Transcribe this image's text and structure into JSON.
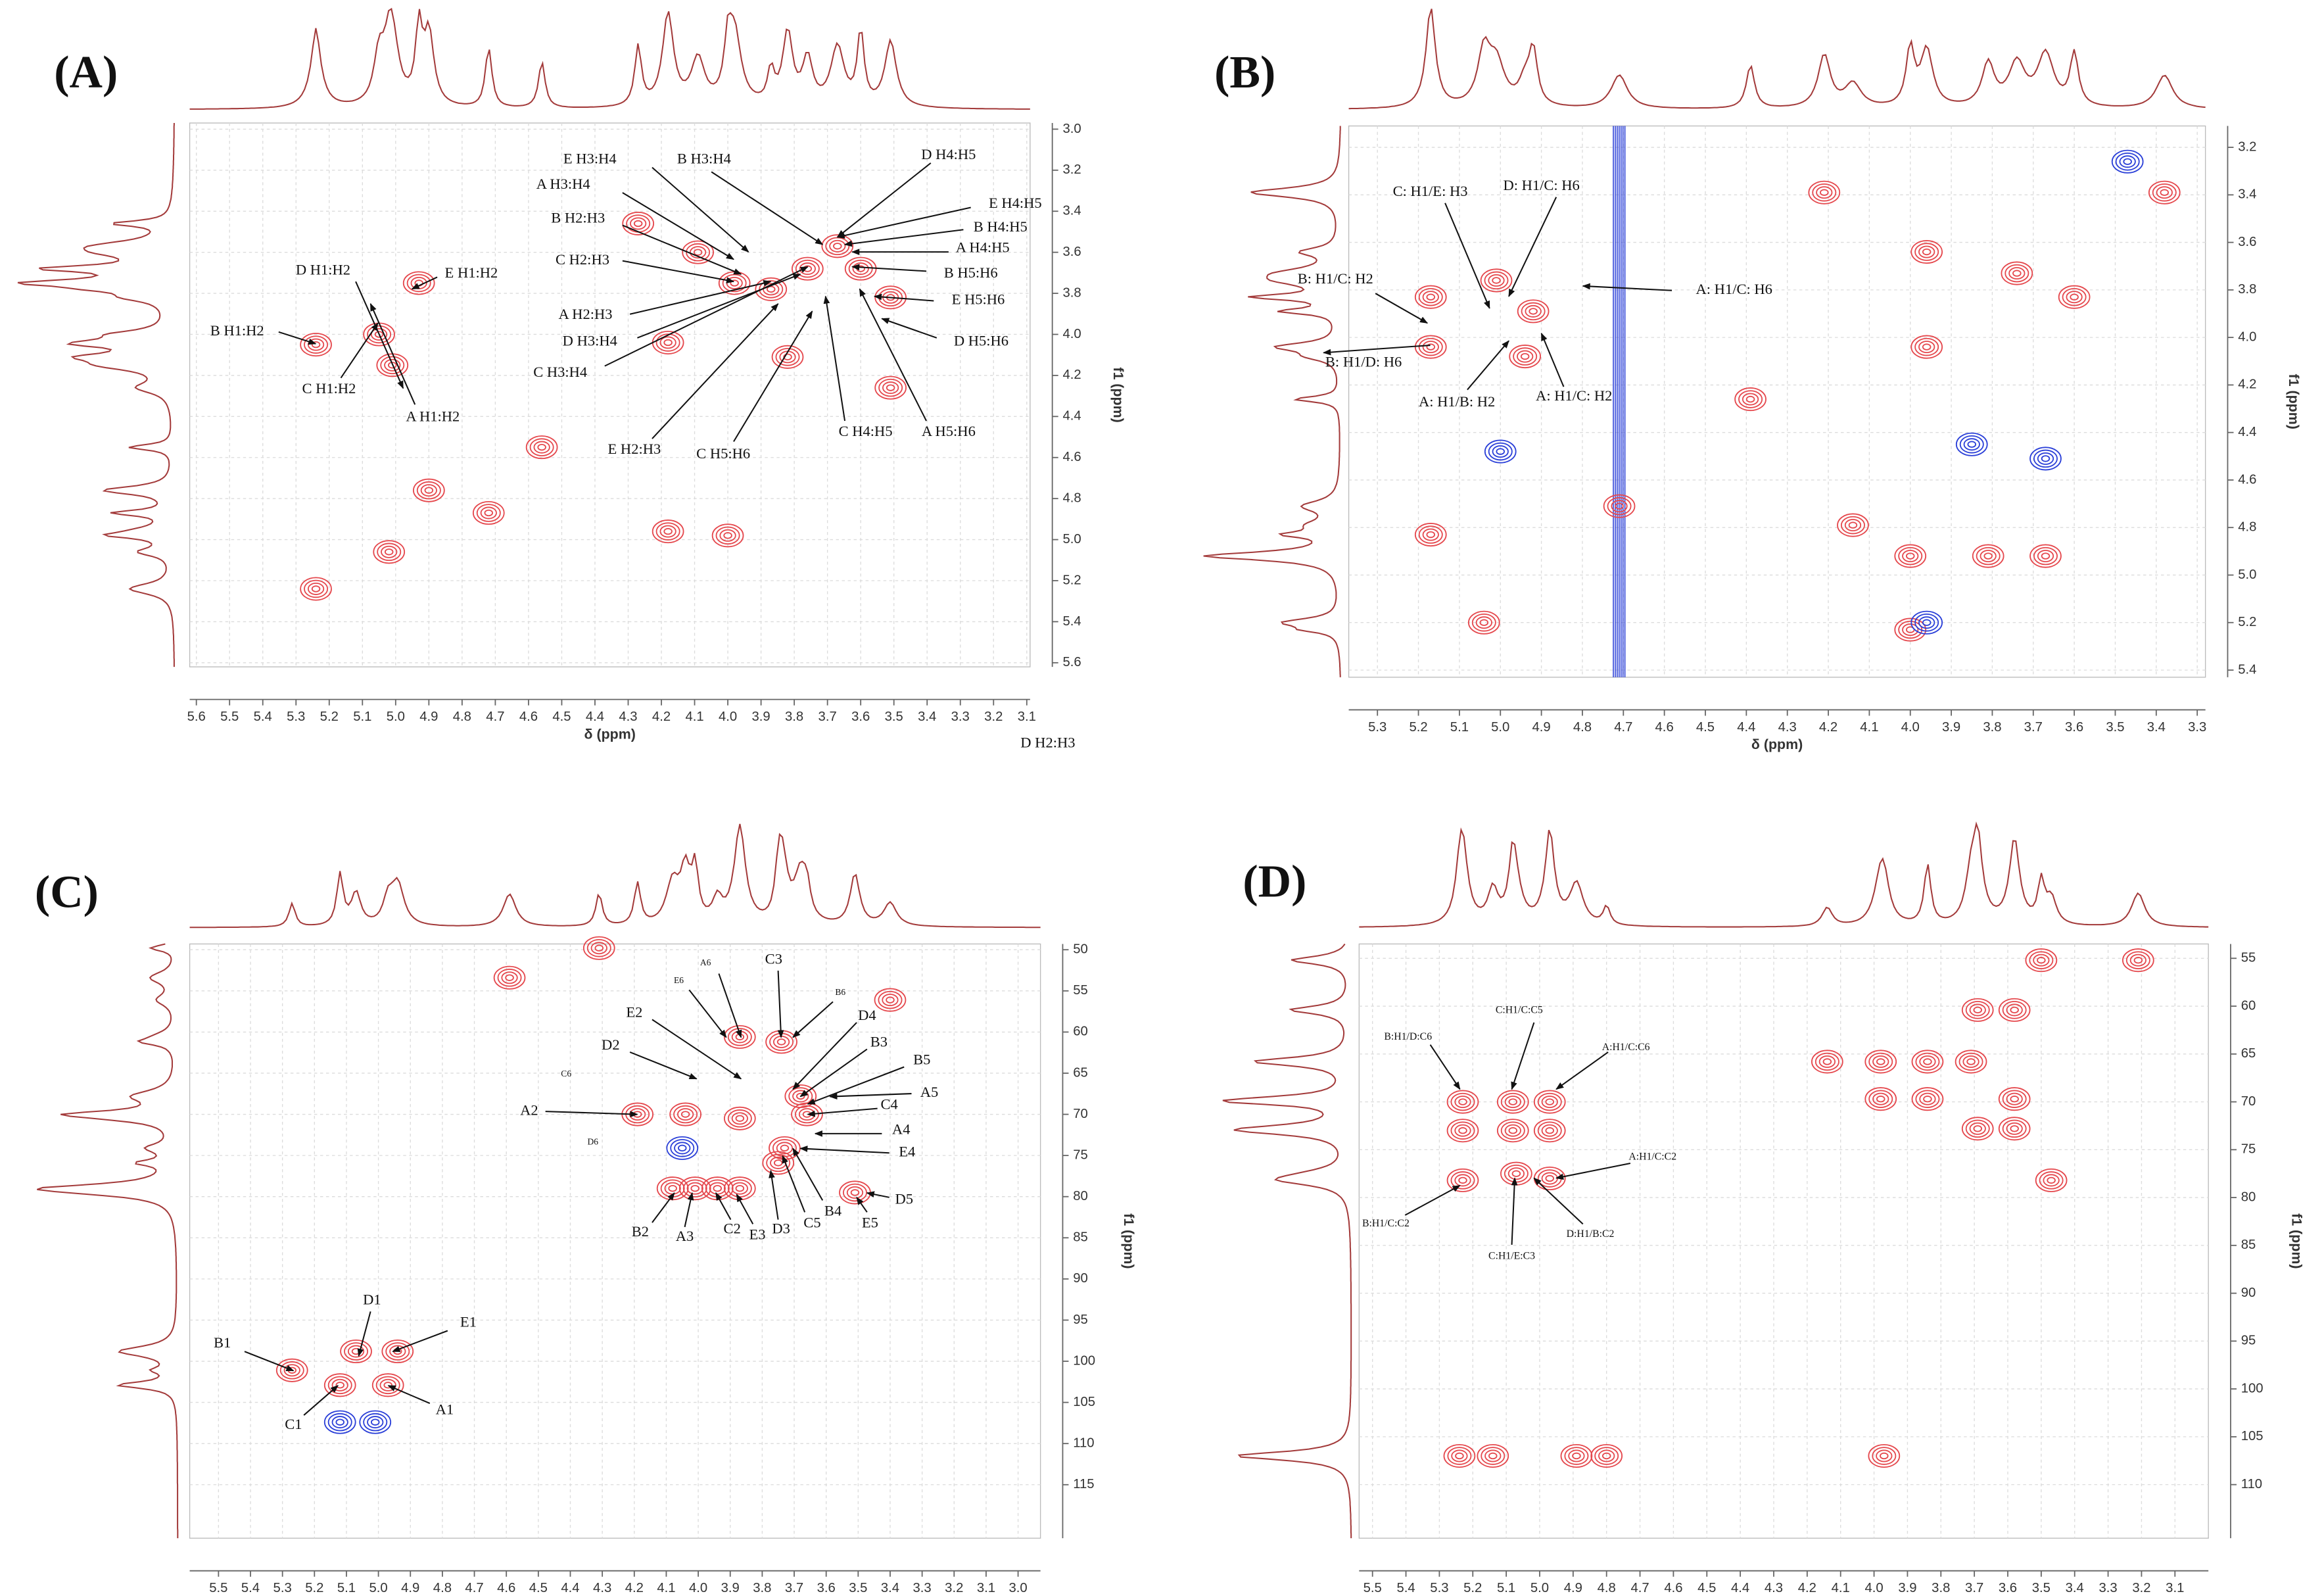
{
  "chart_data": [
    {
      "type": "contour",
      "panel_label": "(A)",
      "x_label": "δ (ppm)",
      "y_label": "f1 (ppm)",
      "xlim": [
        5.62,
        3.09
      ],
      "ylim": [
        2.97,
        5.62
      ],
      "xticks": [
        5.6,
        5.5,
        5.4,
        5.3,
        5.2,
        5.1,
        {
          "value": 5,
          "label": "5.0"
        },
        4.9,
        4.8,
        4.7,
        4.6,
        4.5,
        4.4,
        4.3,
        4.2,
        4.1,
        {
          "value": 4,
          "label": "4.0"
        },
        3.9,
        3.8,
        3.7,
        3.6,
        3.5,
        3.4,
        3.3,
        3.2,
        3.1
      ],
      "yticks": [
        {
          "value": 3,
          "label": "3.0"
        },
        3.2,
        3.4,
        3.6,
        3.8,
        {
          "value": 4,
          "label": "4.0"
        },
        4.2,
        4.4,
        4.6,
        4.8,
        {
          "value": 5,
          "label": "5.0"
        },
        5.2,
        5.4,
        5.6
      ],
      "grid": true,
      "color": "#e5484d",
      "negative_color": "#2a3fd8",
      "peaks": [
        {
          "x": 5.24,
          "y": 4.05
        },
        {
          "x": 5.05,
          "y": 4.0
        },
        {
          "x": 5.01,
          "y": 4.15
        },
        {
          "x": 4.93,
          "y": 3.75
        },
        {
          "x": 5.02,
          "y": 5.06
        },
        {
          "x": 5.24,
          "y": 5.24
        },
        {
          "x": 4.72,
          "y": 4.87
        },
        {
          "x": 4.9,
          "y": 4.76
        },
        {
          "x": 4.18,
          "y": 4.96
        },
        {
          "x": 4.0,
          "y": 4.98
        },
        {
          "x": 4.18,
          "y": 4.04
        },
        {
          "x": 3.98,
          "y": 3.75
        },
        {
          "x": 3.87,
          "y": 3.78
        },
        {
          "x": 3.76,
          "y": 3.68
        },
        {
          "x": 3.67,
          "y": 3.57
        },
        {
          "x": 3.6,
          "y": 3.68
        },
        {
          "x": 3.51,
          "y": 3.82
        },
        {
          "x": 4.09,
          "y": 3.6
        },
        {
          "x": 4.27,
          "y": 3.46
        },
        {
          "x": 3.82,
          "y": 4.11
        },
        {
          "x": 3.51,
          "y": 4.26
        },
        {
          "x": 4.56,
          "y": 4.55
        }
      ],
      "negative_peaks": [],
      "annotations": [
        "E H3:H4",
        "B H3:H4",
        "D H4:H5",
        "A H3:H4",
        "E H4:H5",
        "B H2:H3",
        "B H4:H5",
        "A H4:H5",
        "C H2:H3",
        "D H1:H2",
        "E H1:H2",
        "B H5:H6",
        "B H1:H2",
        "E H5:H6",
        "A H2:H3",
        "D H3:H4",
        "D H5:H6",
        "C H3:H4",
        "C H1:H2",
        "A H1:H2",
        "E H2:H3",
        "C H5:H6",
        "C H4:H5",
        "A H5:H6",
        "D H2:H3"
      ]
    },
    {
      "type": "contour",
      "panel_label": "(B)",
      "x_label": "δ (ppm)",
      "y_label": "f1 (ppm)",
      "xlim": [
        5.37,
        3.28
      ],
      "ylim": [
        3.11,
        5.43
      ],
      "xticks": [
        5.3,
        5.2,
        5.1,
        {
          "value": 5,
          "label": "5.0"
        },
        4.9,
        4.8,
        4.7,
        4.6,
        4.5,
        4.4,
        4.3,
        4.2,
        4.1,
        {
          "value": 4,
          "label": "4.0"
        },
        3.9,
        3.8,
        3.7,
        3.6,
        3.5,
        3.4,
        3.3
      ],
      "yticks": [
        3.2,
        3.4,
        3.6,
        3.8,
        {
          "value": 4,
          "label": "4.0"
        },
        4.2,
        4.4,
        4.6,
        4.8,
        {
          "value": 5,
          "label": "5.0"
        },
        5.2,
        5.4
      ],
      "grid": true,
      "color": "#e5484d",
      "negative_color": "#2a3fd8",
      "peaks": [
        {
          "x": 5.17,
          "y": 3.83
        },
        {
          "x": 5.17,
          "y": 4.04
        },
        {
          "x": 5.01,
          "y": 3.76
        },
        {
          "x": 4.92,
          "y": 3.89
        },
        {
          "x": 4.94,
          "y": 4.08
        },
        {
          "x": 4.71,
          "y": 4.71
        },
        {
          "x": 5.17,
          "y": 4.83
        },
        {
          "x": 5.04,
          "y": 5.2
        },
        {
          "x": 4.14,
          "y": 4.79
        },
        {
          "x": 4.0,
          "y": 4.92
        },
        {
          "x": 3.81,
          "y": 4.92
        },
        {
          "x": 3.67,
          "y": 4.92
        },
        {
          "x": 4.0,
          "y": 5.23
        },
        {
          "x": 3.96,
          "y": 3.64
        },
        {
          "x": 3.74,
          "y": 3.73
        },
        {
          "x": 3.6,
          "y": 3.83
        },
        {
          "x": 3.96,
          "y": 4.04
        },
        {
          "x": 3.38,
          "y": 3.39
        },
        {
          "x": 4.39,
          "y": 4.26
        },
        {
          "x": 4.21,
          "y": 3.39
        }
      ],
      "negative_peaks": [
        {
          "x": 5.0,
          "y": 4.48
        },
        {
          "x": 3.85,
          "y": 4.45
        },
        {
          "x": 3.67,
          "y": 4.51
        },
        {
          "x": 3.47,
          "y": 3.26
        },
        {
          "x": 3.96,
          "y": 5.2
        }
      ],
      "streaks": [
        4.71
      ],
      "annotations": [
        "C: H1/E: H3",
        "D: H1/C: H6",
        "B: H1/C: H2",
        "A: H1/C: H6",
        "B: H1/D: H6",
        "A: H1/B: H2",
        "A: H1/C: H2"
      ]
    },
    {
      "type": "contour",
      "panel_label": "(C)",
      "x_label": "δ (ppm)",
      "y_label": "f1 (ppm)",
      "xlim": [
        5.59,
        2.93
      ],
      "ylim": [
        49.3,
        121.5
      ],
      "xticks": [
        5.5,
        5.4,
        5.3,
        5.2,
        5.1,
        {
          "value": 5,
          "label": "5.0"
        },
        4.9,
        4.8,
        4.7,
        4.6,
        4.5,
        4.4,
        4.3,
        4.2,
        4.1,
        {
          "value": 4,
          "label": "4.0"
        },
        3.9,
        3.8,
        3.7,
        3.6,
        3.5,
        3.4,
        3.3,
        3.2,
        3.1,
        {
          "value": 3,
          "label": "3.0"
        }
      ],
      "yticks": [
        50,
        55,
        60,
        65,
        70,
        75,
        80,
        85,
        90,
        95,
        100,
        105,
        110,
        115
      ],
      "grid": true,
      "color": "#e5484d",
      "negative_color": "#2a3fd8",
      "peaks": [
        {
          "x": 5.27,
          "y": 101.1
        },
        {
          "x": 5.07,
          "y": 98.8
        },
        {
          "x": 4.94,
          "y": 98.8
        },
        {
          "x": 5.12,
          "y": 102.9
        },
        {
          "x": 4.97,
          "y": 102.9
        },
        {
          "x": 4.59,
          "y": 53.4
        },
        {
          "x": 4.19,
          "y": 70
        },
        {
          "x": 4.04,
          "y": 70
        },
        {
          "x": 3.87,
          "y": 60.6
        },
        {
          "x": 3.74,
          "y": 61.2
        },
        {
          "x": 3.87,
          "y": 70.5
        },
        {
          "x": 3.68,
          "y": 67.8
        },
        {
          "x": 3.66,
          "y": 70
        },
        {
          "x": 3.73,
          "y": 74.1
        },
        {
          "x": 4.08,
          "y": 79
        },
        {
          "x": 4.01,
          "y": 79
        },
        {
          "x": 3.94,
          "y": 79
        },
        {
          "x": 3.87,
          "y": 79
        },
        {
          "x": 3.75,
          "y": 75.9
        },
        {
          "x": 3.51,
          "y": 79.5
        },
        {
          "x": 3.4,
          "y": 56.1
        },
        {
          "x": 4.31,
          "y": 49.8
        }
      ],
      "negative_peaks": [
        {
          "x": 4.05,
          "y": 74.1
        },
        {
          "x": 5.12,
          "y": 107.4
        },
        {
          "x": 5.01,
          "y": 107.4
        }
      ],
      "annotations": [
        "B1",
        "D1",
        "E1",
        "C1",
        "A1",
        "A2",
        "C6",
        "D6",
        "D2",
        "E2",
        "A6",
        "E6",
        "C3",
        "B6",
        "D4",
        "B3",
        "B5",
        "A5",
        "C4",
        "A4",
        "E4",
        "B2",
        "A3",
        "C2",
        "E3",
        "D3",
        "C5",
        "B4",
        "E5",
        "D5"
      ]
    },
    {
      "type": "contour",
      "panel_label": "(D)",
      "x_label": "δ (ppm)",
      "y_label": "f1 (ppm)",
      "xlim": [
        5.54,
        3.0
      ],
      "ylim": [
        53.5,
        115.6
      ],
      "xticks": [
        5.5,
        5.4,
        5.3,
        5.2,
        5.1,
        {
          "value": 5,
          "label": "5.0"
        },
        4.9,
        4.8,
        4.7,
        4.6,
        4.5,
        4.4,
        4.3,
        4.2,
        4.1,
        {
          "value": 4,
          "label": "4.0"
        },
        3.9,
        3.8,
        3.7,
        3.6,
        3.5,
        3.4,
        3.3,
        3.2,
        3.1
      ],
      "yticks": [
        55,
        60,
        65,
        70,
        75,
        80,
        85,
        90,
        95,
        100,
        105,
        110
      ],
      "grid": true,
      "color": "#e5484d",
      "negative_color": "#2a3fd8",
      "peaks": [
        {
          "x": 5.23,
          "y": 70
        },
        {
          "x": 5.23,
          "y": 73
        },
        {
          "x": 5.23,
          "y": 78.2
        },
        {
          "x": 5.08,
          "y": 70
        },
        {
          "x": 5.08,
          "y": 73
        },
        {
          "x": 5.07,
          "y": 77.5
        },
        {
          "x": 4.97,
          "y": 70
        },
        {
          "x": 4.97,
          "y": 73
        },
        {
          "x": 4.97,
          "y": 78
        },
        {
          "x": 5.24,
          "y": 107
        },
        {
          "x": 5.14,
          "y": 107
        },
        {
          "x": 4.89,
          "y": 107
        },
        {
          "x": 4.8,
          "y": 107
        },
        {
          "x": 3.97,
          "y": 107
        },
        {
          "x": 3.58,
          "y": 60.4
        },
        {
          "x": 3.69,
          "y": 60.4
        },
        {
          "x": 4.14,
          "y": 65.8
        },
        {
          "x": 3.98,
          "y": 65.8
        },
        {
          "x": 3.84,
          "y": 65.8
        },
        {
          "x": 3.71,
          "y": 65.8
        },
        {
          "x": 3.98,
          "y": 69.7
        },
        {
          "x": 3.84,
          "y": 69.7
        },
        {
          "x": 3.58,
          "y": 69.7
        },
        {
          "x": 3.69,
          "y": 72.8
        },
        {
          "x": 3.58,
          "y": 72.8
        },
        {
          "x": 3.47,
          "y": 78.2
        },
        {
          "x": 3.21,
          "y": 55.2
        },
        {
          "x": 3.5,
          "y": 55.2
        }
      ],
      "negative_peaks": [],
      "annotations": [
        "B:H1/D:C6",
        "C:H1/C:C5",
        "A:H1/C:C6",
        "A:H1/C:C2",
        "B:H1/C:C2",
        "C:H1/E:C3",
        "D:H1/B:C2"
      ]
    }
  ]
}
